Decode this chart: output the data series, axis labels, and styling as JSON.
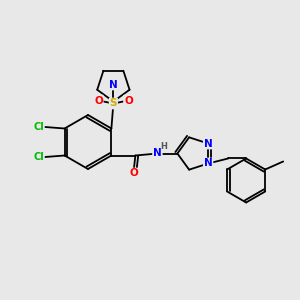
{
  "background_color": "#e8e8e8",
  "bond_color": "#000000",
  "atom_colors": {
    "N": "#0000ff",
    "O": "#ff0000",
    "S": "#d4aa00",
    "Cl": "#00bb00",
    "C": "#000000",
    "H": "#555555"
  },
  "figsize": [
    3.0,
    3.0
  ],
  "dpi": 100
}
